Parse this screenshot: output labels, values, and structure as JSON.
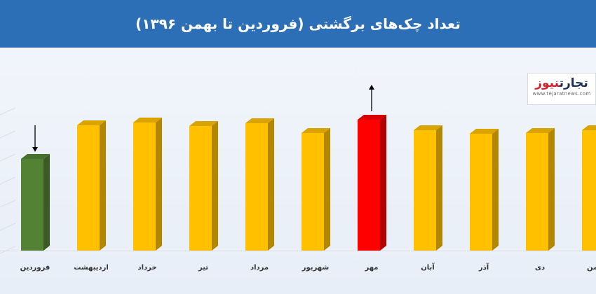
{
  "header": {
    "title": "تعداد چک‌های برگشتی (فروردین تا بهمن ۱۳۹۶)"
  },
  "logo": {
    "brand_part1": "تجارت",
    "brand_part2": "نیوز",
    "url": "www.tejaratnews.com"
  },
  "colors": {
    "header_bg": "#2d6fb6",
    "bar_default": "#ffc000",
    "bar_min": "#548235",
    "bar_max": "#ff0000"
  },
  "chart_data": {
    "type": "bar",
    "title": "تعداد چک‌های برگشتی (فروردین تا بهمن ۱۳۹۶)",
    "xlabel": "",
    "ylabel": "",
    "grid": false,
    "categories": [
      "فروردین",
      "اردیبهشت",
      "خرداد",
      "تیر",
      "مرداد",
      "شهریور",
      "مهر",
      "آبان",
      "آذر",
      "دی",
      "بهمن"
    ],
    "values": [
      131,
      179,
      183,
      178,
      182,
      168,
      187,
      172,
      167,
      168,
      172
    ],
    "ylim": [
      0,
      200
    ],
    "highlight": {
      "min_index": 0,
      "max_index": 6,
      "min_marker": "arrow-down",
      "max_marker": "arrow-up"
    }
  }
}
